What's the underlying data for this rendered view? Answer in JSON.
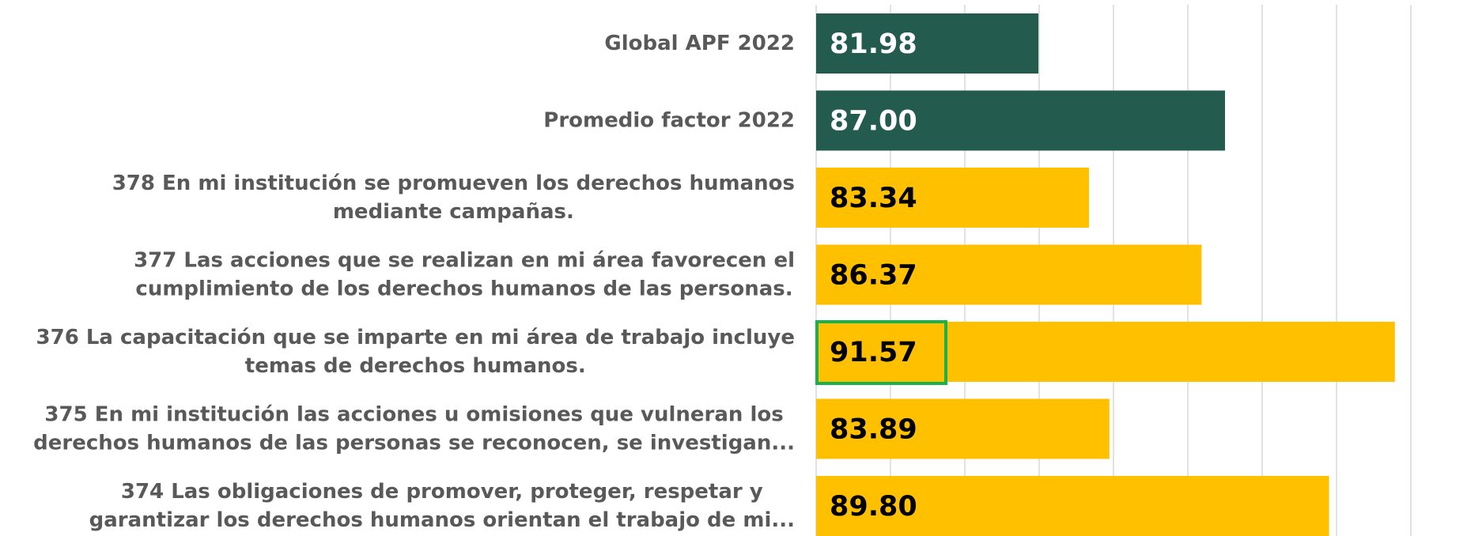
{
  "chart_data": {
    "type": "barh",
    "categories": [
      "Global APF 2022",
      "Promedio factor 2022",
      "378 En mi institución se promueven los derechos humanos\nmediante campañas.",
      "377 Las acciones que se realizan en mi área favorecen el\ncumplimiento de los derechos humanos de las personas.",
      "376 La capacitación que se imparte en mi área de trabajo incluye\ntemas de derechos humanos.",
      "375 En mi institución las acciones u omisiones que vulneran los\nderechos humanos de las personas se reconocen, se investigan...",
      "374 Las obligaciones de promover, proteger, respetar y\ngarantizar los derechos humanos orientan el trabajo de mi..."
    ],
    "values": [
      81.98,
      87.0,
      83.34,
      86.37,
      91.57,
      83.89,
      89.8
    ],
    "value_labels": [
      "81.98",
      "87.00",
      "83.34",
      "86.37",
      "91.57",
      "83.89",
      "89.80"
    ],
    "colors": [
      "#235b4e",
      "#235b4e",
      "#ffc000",
      "#ffc000",
      "#ffc000",
      "#ffc000",
      "#ffc000"
    ],
    "xlim": [
      76,
      92
    ],
    "xticks": [
      76,
      78,
      80,
      82,
      84,
      86,
      88,
      90,
      92
    ],
    "grid": true
  }
}
